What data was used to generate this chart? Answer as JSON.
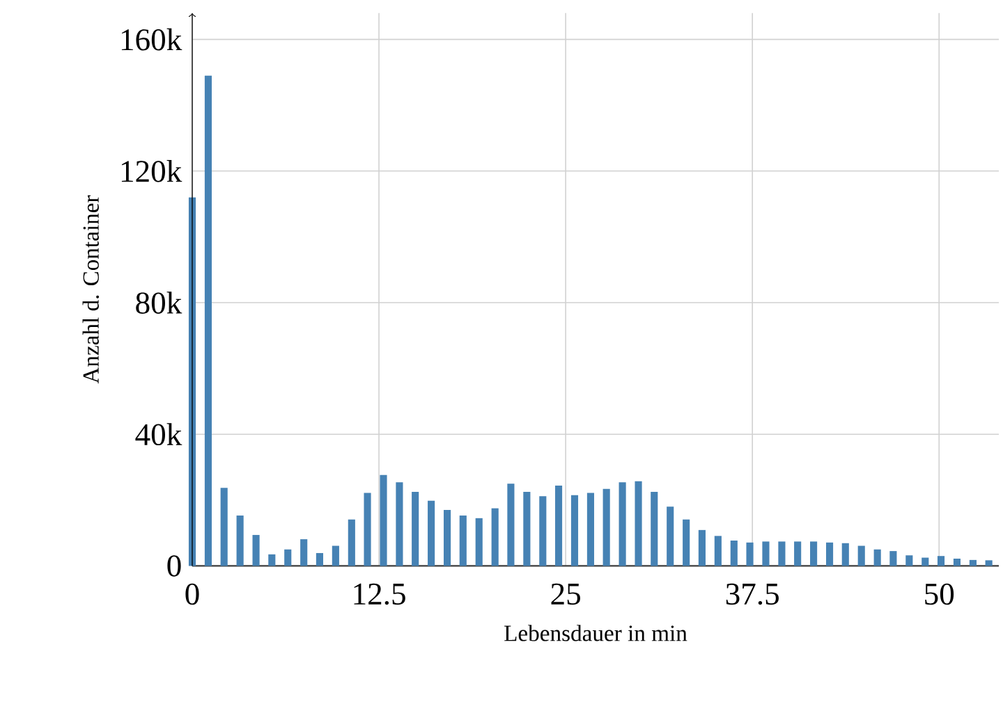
{
  "chart_data": {
    "type": "bar",
    "xlabel": "Lebensdauer in min",
    "ylabel": "Anzahl d. Container",
    "color": "#4682b4",
    "x": [
      0,
      1.07,
      2.13,
      3.2,
      4.27,
      5.33,
      6.4,
      7.47,
      8.53,
      9.6,
      10.67,
      11.73,
      12.8,
      13.87,
      14.93,
      16,
      17.07,
      18.13,
      19.2,
      20.27,
      21.33,
      22.4,
      23.47,
      24.53,
      25.6,
      26.67,
      27.73,
      28.8,
      29.87,
      30.93,
      32,
      33.07,
      34.13,
      35.2,
      36.27,
      37.33,
      38.4,
      39.47,
      40.53,
      41.6,
      42.67,
      43.73,
      44.8,
      45.87,
      46.93,
      48,
      49.07,
      50.13,
      51.2,
      52.27,
      53.33
    ],
    "values": [
      112000,
      149000,
      23700,
      15300,
      9400,
      3500,
      5000,
      8100,
      3900,
      6100,
      14100,
      22200,
      27600,
      25400,
      22500,
      19800,
      17000,
      15300,
      14500,
      17500,
      25000,
      22500,
      21200,
      24400,
      21500,
      22200,
      23400,
      25400,
      25700,
      22500,
      18000,
      14100,
      10900,
      9100,
      7700,
      7100,
      7400,
      7400,
      7400,
      7400,
      7100,
      6900,
      6100,
      5000,
      4500,
      3200,
      2500,
      3000,
      2200,
      1800,
      1700
    ],
    "xlim": [
      0,
      54
    ],
    "ylim": [
      0,
      168000
    ],
    "xticks": [
      0,
      12.5,
      25,
      37.5,
      50
    ],
    "yticks": [
      0,
      {
        "value": 40000,
        "label": "40k"
      },
      {
        "value": 80000,
        "label": "80k"
      },
      {
        "value": 120000,
        "label": "120k"
      },
      {
        "value": 160000,
        "label": "160k"
      }
    ],
    "grid": true
  }
}
